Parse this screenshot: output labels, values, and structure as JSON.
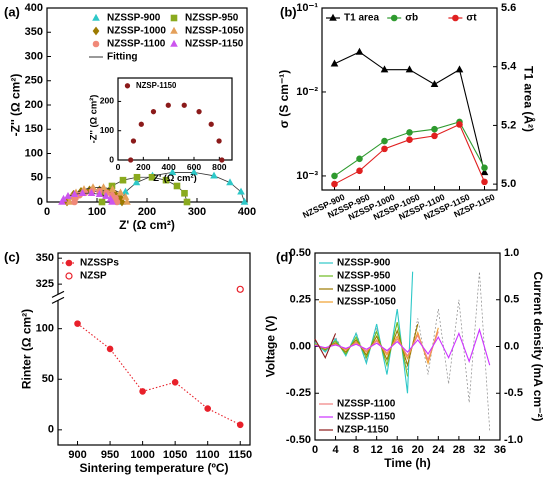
{
  "chart_data": [
    {
      "type": "scatter",
      "panel_label": "(a)",
      "xlabel": "Z' (Ω cm²)",
      "ylabel": "-Z'' (Ω cm²)",
      "xlim": [
        0,
        400
      ],
      "xticks": [
        0,
        100,
        200,
        300,
        400
      ],
      "ylim": [
        0,
        400
      ],
      "yticks": [
        0,
        50,
        100,
        150,
        200,
        250,
        300,
        350,
        400
      ],
      "legend": "upper right",
      "legend_cols": 2,
      "legend_colored": true,
      "fit_label": "Fitting",
      "fit_color": "#333333",
      "series": [
        {
          "name": "NZSSP-900",
          "color": "#2ec8c8",
          "marker": "triangle",
          "x": [
            150,
            157,
            179,
            211,
            251,
            294,
            334,
            366,
            388,
            395
          ],
          "values": [
            0,
            21,
            40,
            54,
            61,
            61,
            54,
            40,
            21,
            0
          ]
        },
        {
          "name": "NZSSP-950",
          "color": "#8aaa1e",
          "marker": "square",
          "x": [
            110,
            115,
            130,
            152,
            180,
            210,
            238,
            260,
            275,
            280
          ],
          "values": [
            0,
            18,
            33,
            45,
            51,
            51,
            45,
            33,
            18,
            0
          ]
        },
        {
          "name": "NZSSP-1000",
          "color": "#9c7a00",
          "marker": "diamond",
          "x": [
            40,
            43,
            53,
            68,
            85,
            105,
            123,
            137,
            147,
            150
          ],
          "values": [
            0,
            9,
            16,
            22,
            25,
            25,
            22,
            16,
            9,
            0
          ]
        },
        {
          "name": "NZSSP-1050",
          "color": "#e4a05a",
          "marker": "triangle",
          "x": [
            45,
            48,
            58,
            74,
            92,
            113,
            131,
            147,
            157,
            160
          ],
          "values": [
            0,
            10,
            19,
            26,
            30,
            30,
            26,
            19,
            10,
            0
          ]
        },
        {
          "name": "NZSSP-1100",
          "color": "#f08878",
          "marker": "circle",
          "x": [
            55,
            57,
            65,
            76,
            90,
            105,
            119,
            130,
            137,
            140
          ],
          "values": [
            0,
            8,
            14,
            19,
            22,
            22,
            19,
            14,
            8,
            0
          ]
        },
        {
          "name": "NZSSP-1150",
          "color": "#cc55ee",
          "marker": "triangle",
          "x": [
            30,
            33,
            42,
            55,
            71,
            89,
            105,
            118,
            127,
            130
          ],
          "values": [
            0,
            6,
            12,
            16,
            18,
            18,
            16,
            12,
            6,
            0
          ]
        }
      ],
      "inset": {
        "type": "scatter",
        "xlabel": "Z' (Ω cm²)",
        "ylabel": "-Z'' (Ω cm²)",
        "xlim": [
          0,
          900
        ],
        "xticks": [
          0,
          200,
          400,
          600,
          800
        ],
        "ylim": [
          0,
          280
        ],
        "yticks": [
          0,
          100,
          200
        ],
        "legend": "upper left",
        "legend_colored": true,
        "series": [
          {
            "name": "NZSP-1150",
            "color": "#8b1a1a",
            "marker": "circle",
            "x": [
              100,
              122,
              184,
              280,
              397,
              523,
              640,
              736,
              798,
              820
            ],
            "values": [
              0,
              65,
              122,
              165,
              187,
              187,
              165,
              122,
              65,
              0
            ]
          }
        ]
      }
    },
    {
      "type": "line",
      "panel_label": "(b)",
      "ylabel": "σ (S cm⁻¹)",
      "y2label": "T1 area (Å²)",
      "categories": [
        "NZSSP-900",
        "NZSSP-950",
        "NZSSP-1000",
        "NZSSP-1050",
        "NZSSP-1100",
        "NZSSP-1150",
        "NZSP-1150"
      ],
      "xtick_rotation": 25,
      "ylog": true,
      "ylim": [
        0.00068,
        0.1
      ],
      "yticks": [
        {
          "value": 0.001,
          "label": "10⁻³"
        },
        {
          "value": 0.01,
          "label": "10⁻²"
        },
        {
          "value": 0.1,
          "label": "10⁻¹"
        }
      ],
      "y2lim": [
        4.98,
        5.6
      ],
      "y2ticks": [
        {
          "value": 5,
          "label": "5.0"
        },
        5.2,
        5.4,
        5.6
      ],
      "legend": "upper left",
      "legend_cols": 3,
      "legend_colored": false,
      "series": [
        {
          "name": "T1 area",
          "color": "#000000",
          "marker": "triangle",
          "axis": "y2",
          "values": [
            5.41,
            5.45,
            5.39,
            5.39,
            5.34,
            5.39,
            5.04
          ]
        },
        {
          "name": "σb",
          "color": "#2e9a2e",
          "marker": "circle",
          "values": [
            0.001,
            0.0016,
            0.0026,
            0.0033,
            0.0036,
            0.0044,
            0.00125
          ]
        },
        {
          "name": "σt",
          "color": "#e02020",
          "marker": "circle",
          "values": [
            0.0008,
            0.00115,
            0.0021,
            0.0027,
            0.003,
            0.0041,
            0.00085
          ]
        }
      ]
    },
    {
      "type": "scatter",
      "panel_label": "(c)",
      "xlabel": "Sintering temperature (ºC)",
      "ylabel": "Rinter (Ω cm²)",
      "xlim": [
        870,
        1165
      ],
      "xticks": [
        900,
        950,
        1000,
        1050,
        1100,
        1150
      ],
      "ylim": [
        -15,
        355
      ],
      "ybreak": [
        125,
        318
      ],
      "yticks": [
        0,
        50,
        100,
        325,
        350
      ],
      "legend": "upper left",
      "legend_colored": false,
      "series": [
        {
          "name": "NZSSPs",
          "color": "#e8202a",
          "marker": "circle",
          "line": "dotted",
          "x": [
            900,
            950,
            1000,
            1050,
            1100,
            1150
          ],
          "values": [
            105,
            80,
            38,
            47,
            21,
            5
          ]
        },
        {
          "name": "NZSP",
          "color": "#e8202a",
          "marker": "circle",
          "open": true,
          "x": [
            1150
          ],
          "values": [
            320
          ]
        }
      ]
    },
    {
      "type": "line",
      "panel_label": "(d)",
      "xlabel": "Time (h)",
      "ylabel": "Voltage (V)",
      "y2label": "Current density (mA cm⁻²)",
      "xlim": [
        0,
        36
      ],
      "xticks": [
        0,
        4,
        8,
        12,
        16,
        20,
        24,
        28,
        32,
        36
      ],
      "ylim": [
        -0.5,
        0.5
      ],
      "yticks": [
        {
          "value": -0.5,
          "label": "-0.50"
        },
        {
          "value": -0.25,
          "label": "-0.25"
        },
        {
          "value": 0,
          "label": "0.00"
        },
        {
          "value": 0.25,
          "label": "0.25"
        },
        {
          "value": 0.5,
          "label": "0.50"
        }
      ],
      "y2lim": [
        -1,
        1
      ],
      "y2ticks": [
        {
          "value": -1,
          "label": "-1.0"
        },
        {
          "value": -0.5,
          "label": "-0.5"
        },
        {
          "value": 0,
          "label": "0.0"
        },
        {
          "value": 0.5,
          "label": "0.5"
        },
        {
          "value": 1,
          "label": "1.0"
        }
      ],
      "legend_colored": true,
      "series": [
        {
          "color": "#888888",
          "axis": "y2",
          "dash": true,
          "x": [
            0,
            2,
            4,
            6,
            8,
            10,
            12,
            14,
            16,
            18,
            20,
            22,
            24,
            26,
            28,
            30,
            32,
            34
          ],
          "values": [
            0.05,
            -0.05,
            0.1,
            -0.1,
            0.15,
            -0.15,
            0.2,
            -0.2,
            0.25,
            -0.25,
            0.3,
            -0.3,
            0.4,
            -0.4,
            0.5,
            -0.6,
            0.8,
            -0.9
          ]
        },
        {
          "name": "NZSSP-900",
          "color": "#2ec8c8",
          "legend_loc": "upper left",
          "x": [
            0,
            2,
            4,
            6,
            8,
            10,
            12,
            14,
            16,
            18,
            19
          ],
          "values": [
            0.02,
            -0.03,
            0.04,
            -0.05,
            0.07,
            -0.09,
            0.12,
            -0.15,
            0.2,
            -0.25,
            0.4
          ]
        },
        {
          "name": "NZSSP-950",
          "color": "#6fbb22",
          "legend_loc": "upper left",
          "x": [
            0,
            2,
            4,
            6,
            8,
            10,
            12,
            14,
            16,
            18
          ],
          "values": [
            0.015,
            -0.02,
            0.03,
            -0.04,
            0.05,
            -0.06,
            0.08,
            -0.1,
            0.13,
            -0.16
          ]
        },
        {
          "name": "NZSSP-1000",
          "color": "#9c7a00",
          "legend_loc": "upper left",
          "x": [
            0,
            2,
            4,
            6,
            8,
            10,
            12,
            14,
            16,
            18,
            20
          ],
          "values": [
            0.01,
            -0.015,
            0.02,
            -0.03,
            0.035,
            -0.045,
            0.055,
            -0.07,
            0.085,
            -0.1,
            0.12
          ]
        },
        {
          "name": "NZSSP-1050",
          "color": "#f0a030",
          "legend_loc": "upper left",
          "x": [
            0,
            2,
            4,
            6,
            8,
            10,
            12,
            14,
            16,
            18,
            20,
            22,
            24
          ],
          "values": [
            0.01,
            -0.01,
            0.015,
            -0.02,
            0.025,
            -0.03,
            0.035,
            -0.045,
            0.055,
            -0.065,
            0.075,
            -0.09,
            0.1
          ]
        },
        {
          "name": "NZSSP-1100",
          "color": "#f08080",
          "legend_loc": "lower left",
          "x": [
            0,
            2,
            4,
            6,
            8,
            10,
            12,
            14,
            16,
            18,
            20,
            22,
            24
          ],
          "values": [
            0.008,
            -0.01,
            0.012,
            -0.015,
            0.02,
            -0.025,
            0.03,
            -0.035,
            0.04,
            -0.05,
            0.06,
            -0.07,
            0.08
          ]
        },
        {
          "name": "NZSSP-1150",
          "color": "#cc33ff",
          "legend_loc": "lower left",
          "x": [
            0,
            2,
            4,
            6,
            8,
            10,
            12,
            14,
            16,
            18,
            20,
            22,
            24,
            26,
            28,
            30,
            32,
            34
          ],
          "values": [
            0.005,
            -0.006,
            0.008,
            -0.01,
            0.012,
            -0.015,
            0.018,
            -0.022,
            0.026,
            -0.03,
            0.035,
            -0.04,
            0.05,
            -0.06,
            0.07,
            -0.08,
            0.09,
            -0.1
          ]
        },
        {
          "name": "NZSP-1150",
          "color": "#8b1a1a",
          "legend_loc": "lower left",
          "x": [
            0,
            2,
            4
          ],
          "values": [
            0.04,
            -0.06,
            0.07
          ]
        }
      ]
    }
  ]
}
